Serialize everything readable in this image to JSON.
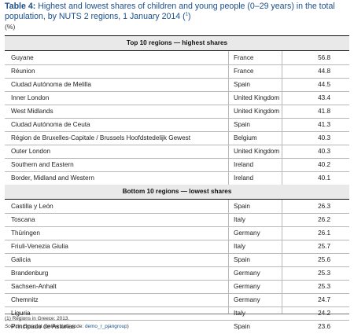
{
  "title": {
    "label": "Table 4:",
    "text": "Highest and lowest shares of children and young people (0–29 years) in the total population, by NUTS 2 regions, 1 January 2014 (",
    "note_ref": "1",
    "close": ")"
  },
  "unit": "(%)",
  "top_section": {
    "heading": "Top 10 regions — highest shares",
    "rows": [
      {
        "region": "Guyane",
        "country": "France",
        "value": "56.8"
      },
      {
        "region": "Réunion",
        "country": "France",
        "value": "44.8"
      },
      {
        "region": "Ciudad Autónoma de Melilla",
        "country": "Spain",
        "value": "44.5"
      },
      {
        "region": "Inner London",
        "country": "United Kingdom",
        "value": "43.4"
      },
      {
        "region": "West Midlands",
        "country": "United Kingdom",
        "value": "41.8"
      },
      {
        "region": "Ciudad Autónoma de Ceuta",
        "country": "Spain",
        "value": "41.3"
      },
      {
        "region": "Région de Bruxelles-Capitale / Brussels Hoofdstedelijk Gewest",
        "country": "Belgium",
        "value": "40.3"
      },
      {
        "region": "Outer London",
        "country": "United Kingdom",
        "value": "40.3"
      },
      {
        "region": "Southern and Eastern",
        "country": "Ireland",
        "value": "40.2"
      },
      {
        "region": "Border, Midland and Western",
        "country": "Ireland",
        "value": "40.1"
      }
    ]
  },
  "bottom_section": {
    "heading": "Bottom 10 regions — lowest shares",
    "rows": [
      {
        "region": "Castilla y León",
        "country": "Spain",
        "value": "26.3"
      },
      {
        "region": "Toscana",
        "country": "Italy",
        "value": "26.2"
      },
      {
        "region": "Thüringen",
        "country": "Germany",
        "value": "26.1"
      },
      {
        "region": "Friuli-Venezia Giulia",
        "country": "Italy",
        "value": "25.7"
      },
      {
        "region": "Galicia",
        "country": "Spain",
        "value": "25.6"
      },
      {
        "region": "Brandenburg",
        "country": "Germany",
        "value": "25.3"
      },
      {
        "region": "Sachsen-Anhalt",
        "country": "Germany",
        "value": "25.3"
      },
      {
        "region": "Chemnitz",
        "country": "Germany",
        "value": "24.7"
      },
      {
        "region": "Liguria",
        "country": "Italy",
        "value": "24.2"
      },
      {
        "region": "Principado de Asturias",
        "country": "Spain",
        "value": "23.6"
      }
    ]
  },
  "footnote": {
    "ref": "1",
    "text": "Regions in Greece: 2013."
  },
  "source": {
    "label": "Source:",
    "text": "Eurostat (online data code: ",
    "code": "demo_r_pjangroup",
    "close": ")"
  }
}
